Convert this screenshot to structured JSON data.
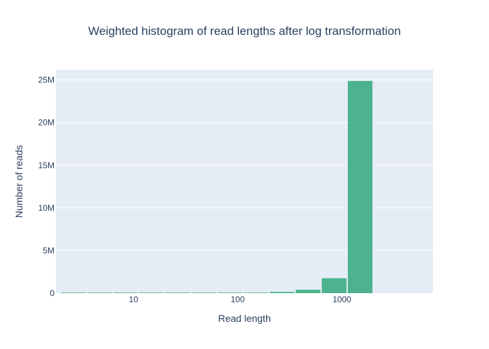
{
  "chart_data": {
    "type": "bar",
    "title": "Weighted histogram of read lengths after log transformation",
    "xlabel": "Read length",
    "ylabel": "Number of reads",
    "x_scale": "log",
    "x_range": [
      1.8,
      7500
    ],
    "x_ticks": [
      10,
      100,
      1000
    ],
    "x_tick_labels": [
      "10",
      "100",
      "1000"
    ],
    "y_range": [
      0,
      26200000
    ],
    "y_ticks": [
      0,
      5000000,
      10000000,
      15000000,
      20000000,
      25000000
    ],
    "y_tick_labels": [
      "0",
      "5M",
      "10M",
      "15M",
      "20M",
      "25M"
    ],
    "bins": [
      {
        "x_start": 2.0,
        "x_end": 3.55,
        "value": 0
      },
      {
        "x_start": 3.55,
        "x_end": 6.3,
        "value": 0
      },
      {
        "x_start": 6.3,
        "x_end": 11.2,
        "value": 0
      },
      {
        "x_start": 11.2,
        "x_end": 19.9,
        "value": 0
      },
      {
        "x_start": 19.9,
        "x_end": 35.5,
        "value": 0
      },
      {
        "x_start": 35.5,
        "x_end": 63.1,
        "value": 0
      },
      {
        "x_start": 63.1,
        "x_end": 112.2,
        "value": 0
      },
      {
        "x_start": 112.2,
        "x_end": 199.5,
        "value": 0
      },
      {
        "x_start": 199.5,
        "x_end": 354.8,
        "value": 150000
      },
      {
        "x_start": 354.8,
        "x_end": 631.0,
        "value": 400000
      },
      {
        "x_start": 631.0,
        "x_end": 1122.0,
        "value": 1750000
      },
      {
        "x_start": 1122.0,
        "x_end": 1995.0,
        "value": 24900000
      }
    ],
    "colors": {
      "bar": "#4cb38e",
      "plot_bg": "#e5ecf6",
      "grid": "#ffffff",
      "text": "#2a3f5f"
    },
    "grid": true,
    "legend": "none"
  }
}
